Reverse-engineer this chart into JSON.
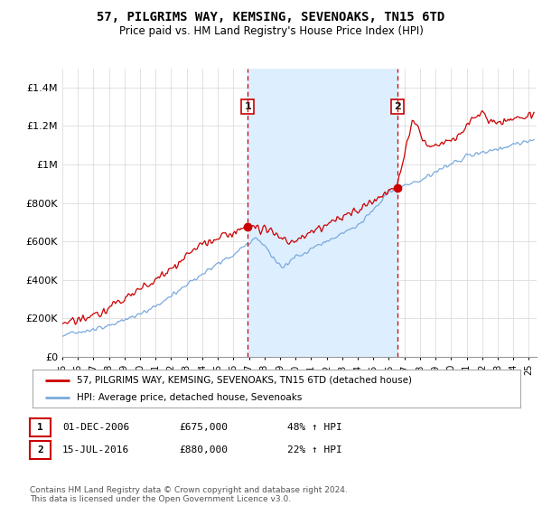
{
  "title": "57, PILGRIMS WAY, KEMSING, SEVENOAKS, TN15 6TD",
  "subtitle": "Price paid vs. HM Land Registry's House Price Index (HPI)",
  "xlim_start": 1995.0,
  "xlim_end": 2025.5,
  "ylim": [
    0,
    1500000
  ],
  "yticks": [
    0,
    200000,
    400000,
    600000,
    800000,
    1000000,
    1200000,
    1400000
  ],
  "ytick_labels": [
    "£0",
    "£200K",
    "£400K",
    "£600K",
    "£800K",
    "£1M",
    "£1.2M",
    "£1.4M"
  ],
  "property_color": "#cc0000",
  "hpi_color": "#7aaadd",
  "hpi_fill_color": "#ddeeff",
  "sale1_date_num": 2006.917,
  "sale1_price": 675000,
  "sale1_label": "1",
  "sale2_date_num": 2016.542,
  "sale2_price": 880000,
  "sale2_label": "2",
  "legend_property": "57, PILGRIMS WAY, KEMSING, SEVENOAKS, TN15 6TD (detached house)",
  "legend_hpi": "HPI: Average price, detached house, Sevenoaks",
  "table_row1": [
    "1",
    "01-DEC-2006",
    "£675,000",
    "48% ↑ HPI"
  ],
  "table_row2": [
    "2",
    "15-JUL-2016",
    "£880,000",
    "22% ↑ HPI"
  ],
  "footer": "Contains HM Land Registry data © Crown copyright and database right 2024.\nThis data is licensed under the Open Government Licence v3.0.",
  "bg_color": "#ffffff",
  "grid_color": "#dddddd"
}
